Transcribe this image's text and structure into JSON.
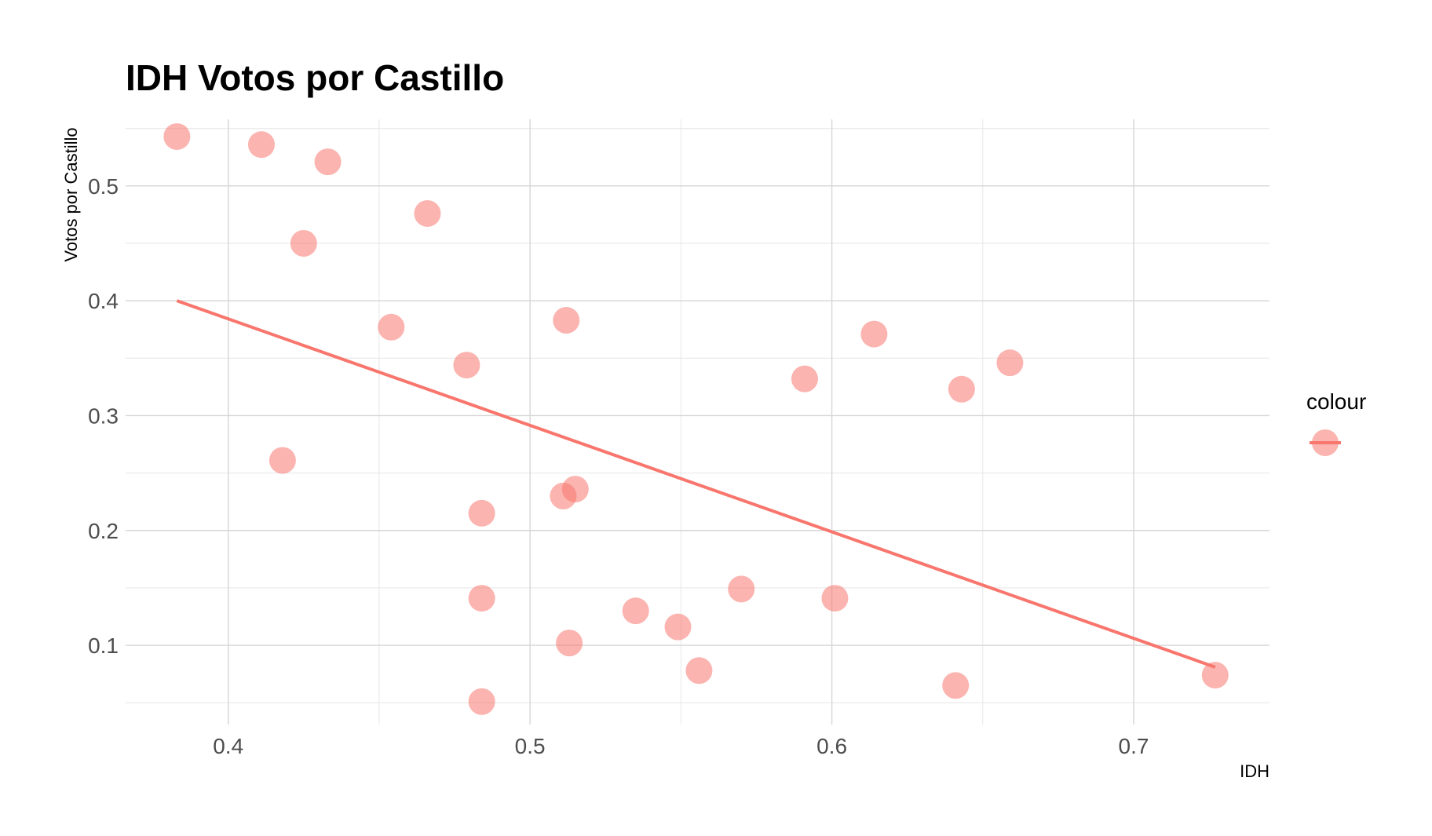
{
  "chart_data": {
    "type": "scatter",
    "title": "IDH  Votos por Castillo",
    "xlabel": "IDH",
    "ylabel": "Votos por Castillo",
    "xlim": [
      0.366,
      0.745
    ],
    "ylim": [
      0.031,
      0.558
    ],
    "x_ticks": [
      0.4,
      0.5,
      0.6,
      0.7
    ],
    "x_tick_labels": [
      "0.4",
      "0.5",
      "0.6",
      "0.7"
    ],
    "y_ticks": [
      0.1,
      0.2,
      0.3,
      0.4,
      0.5
    ],
    "y_tick_labels": [
      "0.1",
      "0.2",
      "0.3",
      "0.4",
      "0.5"
    ],
    "grid": true,
    "legend": {
      "title": "colour",
      "position": "right"
    },
    "colors": {
      "point": "#F8766D",
      "line": "#F8766D"
    },
    "points": [
      {
        "x": 0.383,
        "y": 0.543
      },
      {
        "x": 0.411,
        "y": 0.536
      },
      {
        "x": 0.433,
        "y": 0.521
      },
      {
        "x": 0.466,
        "y": 0.476
      },
      {
        "x": 0.425,
        "y": 0.45
      },
      {
        "x": 0.454,
        "y": 0.377
      },
      {
        "x": 0.512,
        "y": 0.383
      },
      {
        "x": 0.479,
        "y": 0.344
      },
      {
        "x": 0.614,
        "y": 0.371
      },
      {
        "x": 0.659,
        "y": 0.346
      },
      {
        "x": 0.591,
        "y": 0.332
      },
      {
        "x": 0.643,
        "y": 0.323
      },
      {
        "x": 0.418,
        "y": 0.261
      },
      {
        "x": 0.515,
        "y": 0.236
      },
      {
        "x": 0.511,
        "y": 0.23
      },
      {
        "x": 0.484,
        "y": 0.215
      },
      {
        "x": 0.57,
        "y": 0.149
      },
      {
        "x": 0.601,
        "y": 0.141
      },
      {
        "x": 0.484,
        "y": 0.141
      },
      {
        "x": 0.535,
        "y": 0.13
      },
      {
        "x": 0.549,
        "y": 0.116
      },
      {
        "x": 0.513,
        "y": 0.102
      },
      {
        "x": 0.556,
        "y": 0.078
      },
      {
        "x": 0.727,
        "y": 0.074
      },
      {
        "x": 0.641,
        "y": 0.065
      },
      {
        "x": 0.484,
        "y": 0.051
      }
    ],
    "trend_line": {
      "x": [
        0.383,
        0.727
      ],
      "y": [
        0.4,
        0.081
      ]
    }
  }
}
